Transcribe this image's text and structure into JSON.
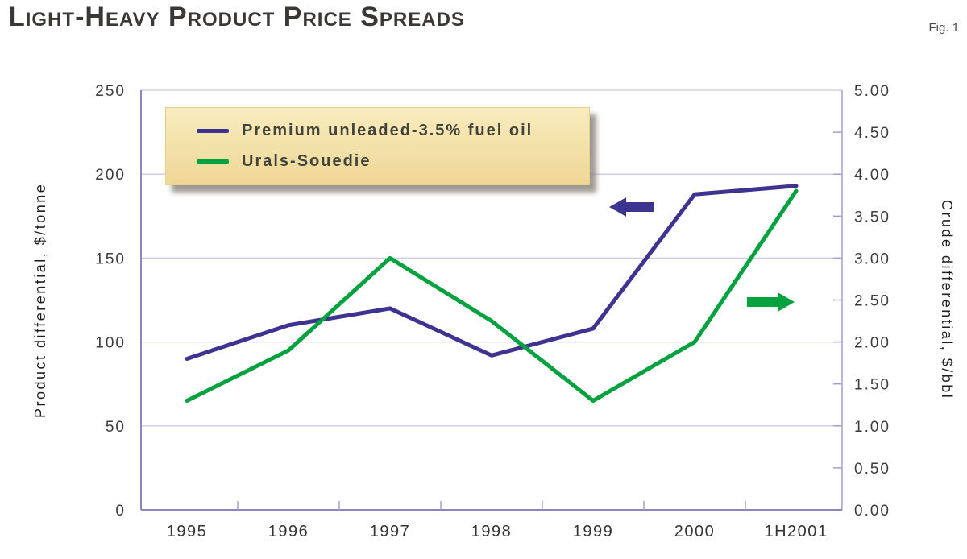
{
  "header": {
    "title": "Light-Heavy Product Price Spreads",
    "figure_label": "Fig. 1"
  },
  "chart_data": {
    "type": "line",
    "categories": [
      "1995",
      "1996",
      "1997",
      "1998",
      "1999",
      "2000",
      "1H2001"
    ],
    "series": [
      {
        "name": "Premium unleaded-3.5% fuel oil",
        "axis": "left",
        "color": "#3f3391",
        "values": [
          90,
          110,
          120,
          92,
          108,
          188,
          193
        ]
      },
      {
        "name": "Urals-Souedie",
        "axis": "right",
        "color": "#00a13f",
        "values": [
          1.3,
          1.9,
          3.0,
          2.25,
          1.3,
          2.0,
          3.8
        ]
      }
    ],
    "axes": {
      "left": {
        "title": "Product differential, $/tonne",
        "min": 0,
        "max": 250,
        "ticks": [
          {
            "v": 0,
            "label": "0"
          },
          {
            "v": 50,
            "label": "50"
          },
          {
            "v": 100,
            "label": "100"
          },
          {
            "v": 150,
            "label": "150"
          },
          {
            "v": 200,
            "label": "200"
          },
          {
            "v": 250,
            "label": "250"
          }
        ]
      },
      "right": {
        "title": "Crude differential, $/bbl",
        "min": 0,
        "max": 5,
        "ticks": [
          {
            "v": 0,
            "label": "0.00"
          },
          {
            "v": 0.5,
            "label": "0.50"
          },
          {
            "v": 1,
            "label": "1.00"
          },
          {
            "v": 1.5,
            "label": "1.50"
          },
          {
            "v": 2,
            "label": "2.00"
          },
          {
            "v": 2.5,
            "label": "2.50"
          },
          {
            "v": 3,
            "label": "3.00"
          },
          {
            "v": 3.5,
            "label": "3.50"
          },
          {
            "v": 4,
            "label": "4.00"
          },
          {
            "v": 4.5,
            "label": "4.50"
          },
          {
            "v": 5,
            "label": "5.00"
          }
        ]
      }
    },
    "legend": {
      "position": "top-left"
    },
    "grid": "horizontal",
    "annotations": [
      {
        "shape": "arrow",
        "direction": "left",
        "color": "#3f3391"
      },
      {
        "shape": "arrow",
        "direction": "right",
        "color": "#00a13f"
      }
    ]
  },
  "colors": {
    "gridline": "#cdc8e4",
    "axis_line": "#8b84c0",
    "axis_line_light": "#a49dd0",
    "legend_background": "#f2dfa4",
    "title_text": "#3b3734"
  }
}
